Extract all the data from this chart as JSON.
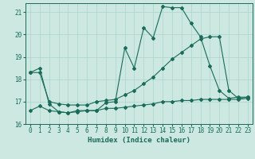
{
  "title": "",
  "xlabel": "Humidex (Indice chaleur)",
  "ylabel": "",
  "bg_color": "#cce8e0",
  "grid_color": "#aad4cc",
  "line_color": "#1a6b5a",
  "xlim": [
    -0.5,
    23.5
  ],
  "ylim": [
    16,
    21.4
  ],
  "yticks": [
    16,
    17,
    18,
    19,
    20,
    21
  ],
  "xticks": [
    0,
    1,
    2,
    3,
    4,
    5,
    6,
    7,
    8,
    9,
    10,
    11,
    12,
    13,
    14,
    15,
    16,
    17,
    18,
    19,
    20,
    21,
    22,
    23
  ],
  "series": [
    {
      "x": [
        0,
        1,
        2,
        3,
        4,
        5,
        6,
        7,
        8,
        9,
        10,
        11,
        12,
        13,
        14,
        15,
        16,
        17,
        18,
        19,
        20,
        21,
        22,
        23
      ],
      "y": [
        18.3,
        18.5,
        16.9,
        16.55,
        16.5,
        16.6,
        16.6,
        16.6,
        16.95,
        17.0,
        19.4,
        18.5,
        20.3,
        19.85,
        21.25,
        21.2,
        21.2,
        20.5,
        19.9,
        18.6,
        17.5,
        17.15,
        17.2,
        17.2
      ],
      "marker": "D",
      "markersize": 2.0
    },
    {
      "x": [
        0,
        1,
        2,
        3,
        4,
        5,
        6,
        7,
        8,
        9,
        10,
        11,
        12,
        13,
        14,
        15,
        16,
        17,
        18,
        19,
        20,
        21,
        22,
        23
      ],
      "y": [
        18.3,
        18.3,
        17.0,
        16.9,
        16.85,
        16.85,
        16.85,
        17.0,
        17.05,
        17.1,
        17.3,
        17.5,
        17.8,
        18.1,
        18.5,
        18.9,
        19.2,
        19.5,
        19.8,
        19.9,
        19.9,
        17.5,
        17.15,
        17.2
      ],
      "marker": "D",
      "markersize": 2.0
    },
    {
      "x": [
        0,
        1,
        2,
        3,
        4,
        5,
        6,
        7,
        8,
        9,
        10,
        11,
        12,
        13,
        14,
        15,
        16,
        17,
        18,
        19,
        20,
        21,
        22,
        23
      ],
      "y": [
        16.6,
        16.8,
        16.6,
        16.55,
        16.5,
        16.55,
        16.6,
        16.6,
        16.7,
        16.7,
        16.75,
        16.8,
        16.85,
        16.9,
        17.0,
        17.0,
        17.05,
        17.05,
        17.1,
        17.1,
        17.1,
        17.1,
        17.1,
        17.15
      ],
      "marker": "D",
      "markersize": 2.0
    }
  ]
}
